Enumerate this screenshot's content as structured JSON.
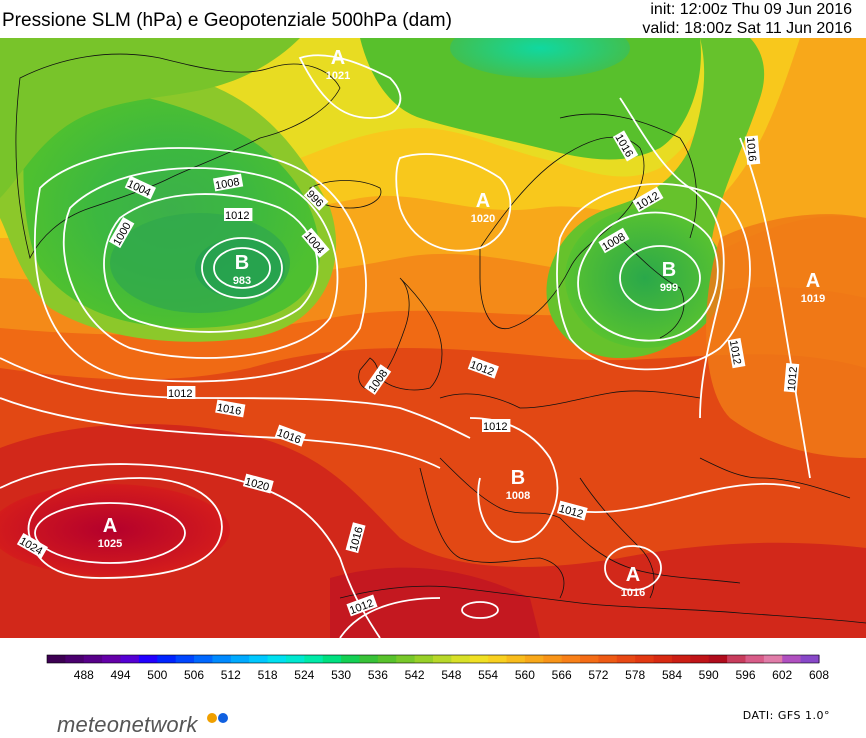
{
  "header": {
    "title": "Pressione SLM (hPa) e Geopotenziale 500hPa (dam)",
    "init": "init: 12:00z Thu 09 Jun 2016",
    "valid": "valid: 18:00z Sat 11 Jun 2016"
  },
  "scale": {
    "labels": [
      "488",
      "494",
      "500",
      "506",
      "512",
      "518",
      "524",
      "530",
      "536",
      "542",
      "548",
      "554",
      "560",
      "566",
      "572",
      "578",
      "584",
      "590",
      "596",
      "602",
      "608"
    ],
    "colors": [
      "#3d0053",
      "#4a006e",
      "#570089",
      "#6400a8",
      "#5500d4",
      "#2200ff",
      "#0024ff",
      "#0046ff",
      "#0068ff",
      "#008aff",
      "#00aaff",
      "#00c8ff",
      "#00e0f0",
      "#00e8d0",
      "#00eaa8",
      "#00e080",
      "#14d054",
      "#38c238",
      "#58c22c",
      "#78c82a",
      "#98d028",
      "#b8d82a",
      "#d8e028",
      "#f0e024",
      "#f8d020",
      "#f8bc1c",
      "#f8a81a",
      "#f89418",
      "#f88018",
      "#f46c16",
      "#ee5a14",
      "#e84814",
      "#e23812",
      "#d82a12",
      "#cc1e14",
      "#c01418",
      "#b00c1c",
      "#c83c5c",
      "#d85c88",
      "#e07ca8",
      "#b050c0",
      "#8848c8"
    ]
  },
  "pressure_centers": [
    {
      "letter": "A",
      "value": "1021"
    },
    {
      "letter": "B",
      "value": "983"
    },
    {
      "letter": "A",
      "value": "1020"
    },
    {
      "letter": "B",
      "value": "999"
    },
    {
      "letter": "A",
      "value": "1019"
    },
    {
      "letter": "A",
      "value": "1025"
    },
    {
      "letter": "B",
      "value": "1008"
    },
    {
      "letter": "A",
      "value": "1016"
    }
  ],
  "isobar_labels": [
    "1004",
    "1008",
    "1012",
    "1000",
    "996",
    "1004",
    "1012",
    "1008",
    "1012",
    "1016",
    "1016",
    "1016",
    "1012",
    "1016",
    "1020",
    "1024",
    "1016",
    "1012",
    "1012",
    "1008",
    "1012",
    "1012",
    "1012"
  ],
  "footer": {
    "brand": "meteonetwork",
    "brand_dot_colors": [
      "#f0a000",
      "#1060e0"
    ],
    "data_source": "DATI: GFS 1.0°"
  }
}
